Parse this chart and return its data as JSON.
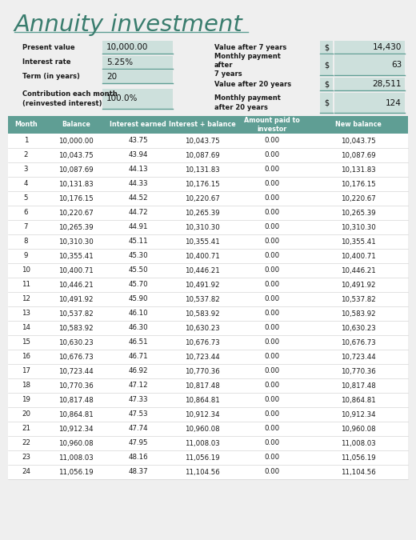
{
  "title": "Annuity investment",
  "title_color": "#3a7d6e",
  "bg_color": "#efefef",
  "header_bg": "#5f9e94",
  "header_text_color": "#ffffff",
  "input_box_color": "#cde0dc",
  "separator_color": "#5f9e94",
  "row_sep_color": "#cccccc",
  "left_inputs": [
    {
      "label": "Present value",
      "value": "10,000.00",
      "multiline": false
    },
    {
      "label": "Interest rate",
      "value": "5.25%",
      "multiline": false
    },
    {
      "label": "Term (in years)",
      "value": "20",
      "multiline": false
    },
    {
      "label": "Contribution each month\n(reinvested interest)",
      "value": "100.0%",
      "multiline": true
    }
  ],
  "right_inputs": [
    {
      "label": "Value after 7 years",
      "dollar": "$",
      "value": "14,430",
      "multiline": false
    },
    {
      "label": "Monthly payment\nafter\n7 years",
      "dollar": "$",
      "value": "63",
      "multiline": true
    },
    {
      "label": "Value after 20 years",
      "dollar": "$",
      "value": "28,511",
      "multiline": false
    },
    {
      "label": "Monthly payment\nafter 20 years",
      "dollar": "$",
      "value": "124",
      "multiline": true
    }
  ],
  "col_headers": [
    "Month",
    "Balance",
    "Interest earned",
    "Interest + balance",
    "Amount paid to\ninvestor",
    "New balance"
  ],
  "table_data": [
    [
      "1",
      "10,000.00",
      "43.75",
      "10,043.75",
      "0.00",
      "10,043.75"
    ],
    [
      "2",
      "10,043.75",
      "43.94",
      "10,087.69",
      "0.00",
      "10,087.69"
    ],
    [
      "3",
      "10,087.69",
      "44.13",
      "10,131.83",
      "0.00",
      "10,131.83"
    ],
    [
      "4",
      "10,131.83",
      "44.33",
      "10,176.15",
      "0.00",
      "10,176.15"
    ],
    [
      "5",
      "10,176.15",
      "44.52",
      "10,220.67",
      "0.00",
      "10,220.67"
    ],
    [
      "6",
      "10,220.67",
      "44.72",
      "10,265.39",
      "0.00",
      "10,265.39"
    ],
    [
      "7",
      "10,265.39",
      "44.91",
      "10,310.30",
      "0.00",
      "10,310.30"
    ],
    [
      "8",
      "10,310.30",
      "45.11",
      "10,355.41",
      "0.00",
      "10,355.41"
    ],
    [
      "9",
      "10,355.41",
      "45.30",
      "10,400.71",
      "0.00",
      "10,400.71"
    ],
    [
      "10",
      "10,400.71",
      "45.50",
      "10,446.21",
      "0.00",
      "10,446.21"
    ],
    [
      "11",
      "10,446.21",
      "45.70",
      "10,491.92",
      "0.00",
      "10,491.92"
    ],
    [
      "12",
      "10,491.92",
      "45.90",
      "10,537.82",
      "0.00",
      "10,537.82"
    ],
    [
      "13",
      "10,537.82",
      "46.10",
      "10,583.92",
      "0.00",
      "10,583.92"
    ],
    [
      "14",
      "10,583.92",
      "46.30",
      "10,630.23",
      "0.00",
      "10,630.23"
    ],
    [
      "15",
      "10,630.23",
      "46.51",
      "10,676.73",
      "0.00",
      "10,676.73"
    ],
    [
      "16",
      "10,676.73",
      "46.71",
      "10,723.44",
      "0.00",
      "10,723.44"
    ],
    [
      "17",
      "10,723.44",
      "46.92",
      "10,770.36",
      "0.00",
      "10,770.36"
    ],
    [
      "18",
      "10,770.36",
      "47.12",
      "10,817.48",
      "0.00",
      "10,817.48"
    ],
    [
      "19",
      "10,817.48",
      "47.33",
      "10,864.81",
      "0.00",
      "10,864.81"
    ],
    [
      "20",
      "10,864.81",
      "47.53",
      "10,912.34",
      "0.00",
      "10,912.34"
    ],
    [
      "21",
      "10,912.34",
      "47.74",
      "10,960.08",
      "0.00",
      "10,960.08"
    ],
    [
      "22",
      "10,960.08",
      "47.95",
      "11,008.03",
      "0.00",
      "11,008.03"
    ],
    [
      "23",
      "11,008.03",
      "48.16",
      "11,056.19",
      "0.00",
      "11,056.19"
    ],
    [
      "24",
      "11,056.19",
      "48.37",
      "11,104.56",
      "0.00",
      "11,104.56"
    ]
  ]
}
